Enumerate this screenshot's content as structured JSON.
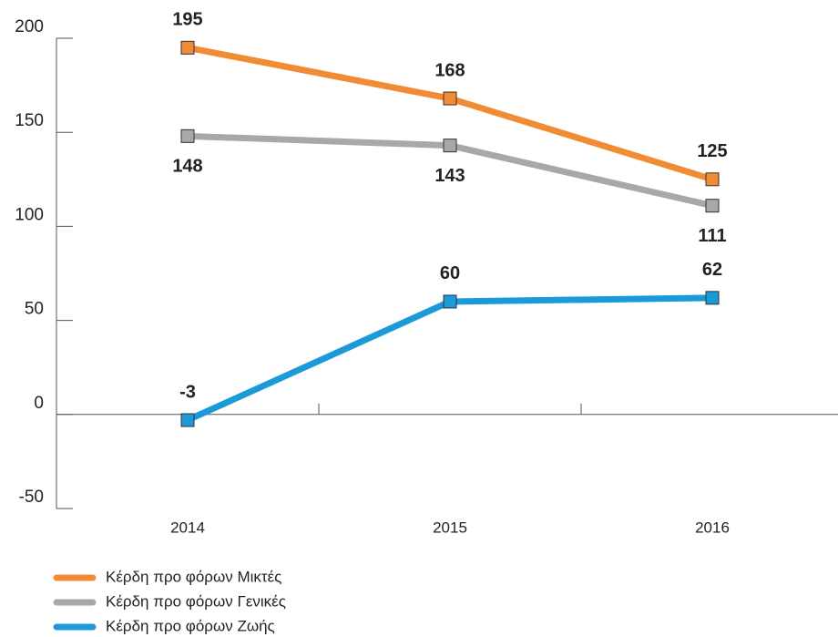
{
  "chart_data": {
    "type": "line",
    "categories": [
      "2014",
      "2015",
      "2016"
    ],
    "series": [
      {
        "name": "Κέρδη προ φόρων Μικτές",
        "color": "#f08c33",
        "values": [
          195,
          168,
          125
        ]
      },
      {
        "name": "Κέρδη προ φόρων Γενικές",
        "color": "#a7a7ac",
        "values": [
          148,
          143,
          111
        ]
      },
      {
        "name": "Κέρδη προ φόρων Ζωής",
        "color": "#1b9ad7",
        "values": [
          -3,
          60,
          62
        ]
      }
    ],
    "ylim": [
      -50,
      200
    ],
    "yticks": [
      -50,
      0,
      50,
      100,
      150,
      200
    ]
  }
}
